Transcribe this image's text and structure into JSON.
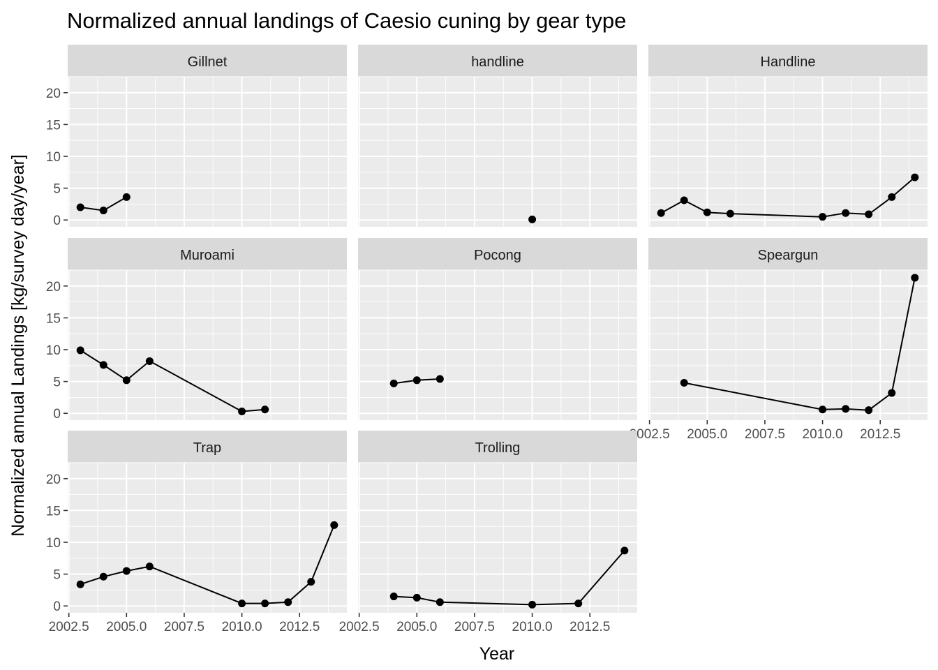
{
  "chart_data": {
    "type": "line",
    "title": "Normalized annual landings of Caesio cuning by gear type",
    "xlabel": "Year",
    "ylabel": "Normalized annual Landings [kg/survey day/year]",
    "xlim": [
      2002.45,
      2014.55
    ],
    "ylim": [
      -1.07,
      22.5
    ],
    "x_ticks": [
      "2002.5",
      "2005.0",
      "2007.5",
      "2010.0",
      "2012.5"
    ],
    "x_tick_values": [
      2002.5,
      2005.0,
      2007.5,
      2010.0,
      2012.5
    ],
    "y_ticks": [
      "0",
      "5",
      "10",
      "15",
      "20"
    ],
    "y_tick_values": [
      0,
      5,
      10,
      15,
      20
    ],
    "grid": true,
    "panels": [
      {
        "name": "Gillnet",
        "x": [
          2003,
          2004,
          2005
        ],
        "y": [
          2.0,
          1.5,
          3.6
        ]
      },
      {
        "name": "handline",
        "x": [
          2010
        ],
        "y": [
          0.1
        ]
      },
      {
        "name": "Handline",
        "x": [
          2003,
          2004,
          2005,
          2006,
          2010,
          2011,
          2012,
          2013,
          2014
        ],
        "y": [
          1.1,
          3.1,
          1.2,
          1.0,
          0.5,
          1.1,
          0.9,
          3.6,
          6.7
        ]
      },
      {
        "name": "Muroami",
        "x": [
          2003,
          2004,
          2005,
          2006,
          2010,
          2011
        ],
        "y": [
          9.9,
          7.6,
          5.2,
          8.2,
          0.3,
          0.6
        ]
      },
      {
        "name": "Pocong",
        "x": [
          2004,
          2005,
          2006
        ],
        "y": [
          4.7,
          5.2,
          5.4
        ]
      },
      {
        "name": "Speargun",
        "x": [
          2004,
          2010,
          2011,
          2012,
          2013,
          2014
        ],
        "y": [
          4.8,
          0.6,
          0.7,
          0.5,
          3.2,
          21.3
        ]
      },
      {
        "name": "Trap",
        "x": [
          2003,
          2004,
          2005,
          2006,
          2010,
          2011,
          2012,
          2013,
          2014
        ],
        "y": [
          3.4,
          4.6,
          5.5,
          6.2,
          0.4,
          0.4,
          0.6,
          3.8,
          12.7
        ]
      },
      {
        "name": "Trolling",
        "x": [
          2004,
          2005,
          2006,
          2010,
          2012,
          2014
        ],
        "y": [
          1.5,
          1.3,
          0.6,
          0.2,
          0.4,
          8.7
        ]
      }
    ]
  }
}
